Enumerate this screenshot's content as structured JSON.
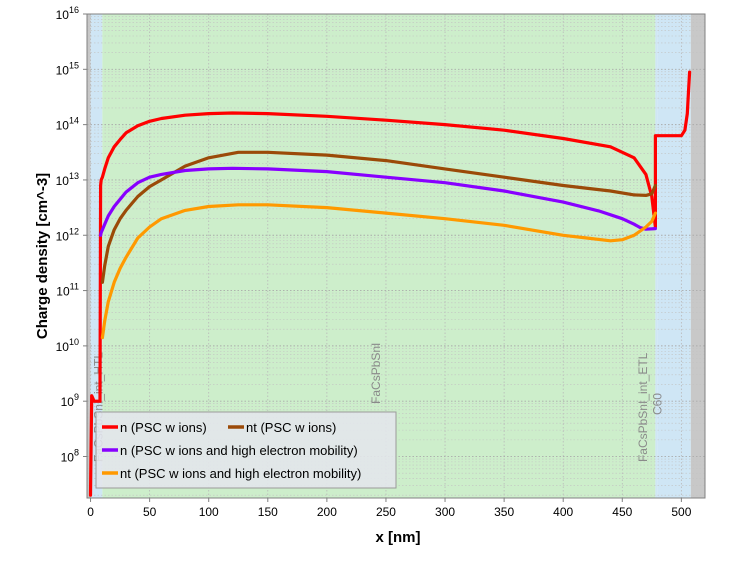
{
  "chart_data": {
    "type": "line",
    "xlabel": "x [nm]",
    "ylabel": "Charge density [cm^-3]",
    "xlim": [
      -3,
      520
    ],
    "ylim_log10": [
      7.25,
      16
    ],
    "y_scale": "log",
    "grid": true,
    "legend_position": "bottom-left",
    "x_ticks": [
      "0",
      "50",
      "100",
      "150",
      "200",
      "250",
      "300",
      "350",
      "400",
      "450",
      "500"
    ],
    "x_tick_values": [
      0,
      50,
      100,
      150,
      200,
      250,
      300,
      350,
      400,
      450,
      500
    ],
    "y_ticks": [
      {
        "exp": 8,
        "base": "10",
        "sup": "8"
      },
      {
        "exp": 9,
        "base": "10",
        "sup": "9"
      },
      {
        "exp": 10,
        "base": "10",
        "sup": "10"
      },
      {
        "exp": 11,
        "base": "10",
        "sup": "11"
      },
      {
        "exp": 12,
        "base": "10",
        "sup": "12"
      },
      {
        "exp": 13,
        "base": "10",
        "sup": "13"
      },
      {
        "exp": 14,
        "base": "10",
        "sup": "14"
      },
      {
        "exp": 15,
        "base": "10",
        "sup": "15"
      },
      {
        "exp": 16,
        "base": "10",
        "sup": "16"
      }
    ],
    "regions": [
      {
        "name": "",
        "from": -3,
        "to": 0,
        "color": "#c8c8c8"
      },
      {
        "name": "FaCsPbSnI_int_HTL",
        "from": 0,
        "to": 10,
        "color": "#cfe6f5"
      },
      {
        "name": "FaCsPbSnI",
        "from": 10,
        "to": 478,
        "color": "#cdeecb"
      },
      {
        "name": "FaCsPbSnI_int_ETL",
        "from": 478,
        "to": 480,
        "color": "#cfe6f5"
      },
      {
        "name": "C60",
        "from": 480,
        "to": 508,
        "color": "#cfe6f5"
      },
      {
        "name": "",
        "from": 508,
        "to": 520,
        "color": "#c8c8c8"
      }
    ],
    "region_labels": [
      {
        "text": "FaCsPbSnI_int_HTL",
        "x": 10,
        "y_log": 7.9
      },
      {
        "text": "FaCsPbSnI",
        "x": 245,
        "y_log": 8.95
      },
      {
        "text": "FaCsPbSnI_int_ETL",
        "x": 471,
        "y_log": 7.9
      },
      {
        "text": "C60",
        "x": 483,
        "y_log": 8.75
      }
    ],
    "series": [
      {
        "name": "n (PSC w ions)",
        "color": "#ff0000",
        "x": [
          0,
          0.5,
          1,
          2,
          3,
          5,
          6,
          7,
          8,
          8.5,
          9,
          10,
          12,
          15,
          20,
          25,
          30,
          40,
          50,
          60,
          80,
          100,
          120,
          150,
          200,
          250,
          300,
          350,
          400,
          440,
          460,
          470,
          475,
          478,
          478,
          479,
          490,
          500,
          503,
          505,
          506,
          507
        ],
        "y_log": [
          7.3,
          8.2,
          9.1,
          9.05,
          9.0,
          9.0,
          9.0,
          9.0,
          9.0,
          12.9,
          13.0,
          13.05,
          13.2,
          13.4,
          13.6,
          13.73,
          13.85,
          13.98,
          14.06,
          14.11,
          14.17,
          14.2,
          14.21,
          14.2,
          14.15,
          14.08,
          14.0,
          13.9,
          13.75,
          13.6,
          13.4,
          13.1,
          12.7,
          12.15,
          13.8,
          13.8,
          13.8,
          13.8,
          13.9,
          14.2,
          14.6,
          14.95
        ]
      },
      {
        "name": "nt (PSC w ions)",
        "color": "#9b4a08",
        "x": [
          10,
          12,
          15,
          20,
          25,
          30,
          40,
          50,
          60,
          80,
          100,
          125,
          150,
          200,
          250,
          300,
          350,
          400,
          440,
          460,
          470,
          475,
          478
        ],
        "y_log": [
          11.15,
          11.45,
          11.8,
          12.1,
          12.3,
          12.45,
          12.7,
          12.88,
          13.0,
          13.25,
          13.4,
          13.5,
          13.5,
          13.45,
          13.35,
          13.2,
          13.05,
          12.9,
          12.8,
          12.73,
          12.72,
          12.75,
          12.9
        ]
      },
      {
        "name": "n (PSC w ions and high electron mobility)",
        "color": "#8800ff",
        "x": [
          8.5,
          9,
          10,
          12,
          15,
          20,
          25,
          30,
          40,
          50,
          60,
          80,
          100,
          120,
          150,
          200,
          250,
          300,
          350,
          400,
          430,
          450,
          460,
          465,
          470,
          478
        ],
        "y_log": [
          12.0,
          12.05,
          12.1,
          12.2,
          12.35,
          12.52,
          12.65,
          12.78,
          12.95,
          13.05,
          13.1,
          13.17,
          13.2,
          13.21,
          13.2,
          13.15,
          13.05,
          12.95,
          12.8,
          12.6,
          12.44,
          12.3,
          12.2,
          12.14,
          12.11,
          12.12
        ]
      },
      {
        "name": "nt (PSC w ions and high electron mobility)",
        "color": "#ff9900",
        "x": [
          10,
          12,
          15,
          20,
          25,
          30,
          40,
          50,
          60,
          80,
          100,
          125,
          150,
          200,
          250,
          300,
          350,
          400,
          420,
          440,
          450,
          460,
          470,
          475,
          478
        ],
        "y_log": [
          10.15,
          10.45,
          10.8,
          11.15,
          11.4,
          11.6,
          11.95,
          12.15,
          12.3,
          12.45,
          12.52,
          12.55,
          12.55,
          12.5,
          12.4,
          12.3,
          12.18,
          12.0,
          11.95,
          11.9,
          11.92,
          12.0,
          12.15,
          12.25,
          12.4
        ]
      }
    ]
  }
}
